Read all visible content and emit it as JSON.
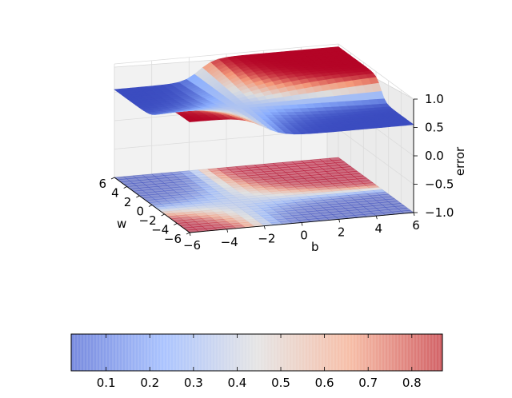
{
  "chart_data": {
    "type": "surface3d",
    "title": "",
    "xlabel": "b",
    "ylabel": "w",
    "zlabel": "error",
    "b_ticks": [
      "−6",
      "−4",
      "−2",
      "0",
      "2",
      "4",
      "6"
    ],
    "w_ticks": [
      "−6",
      "−4",
      "−2",
      "0",
      "2",
      "4",
      "6"
    ],
    "z_ticks": [
      "−1.0",
      "−0.5",
      "0.0",
      "0.5",
      "1.0"
    ],
    "xlim": [
      -6,
      6
    ],
    "ylim": [
      -6,
      6
    ],
    "zlim": [
      -1,
      1
    ],
    "contour_offset": -1,
    "colormap": "coolwarm",
    "colorbar": {
      "ticks": [
        "0.1",
        "0.2",
        "0.3",
        "0.4",
        "0.5",
        "0.6",
        "0.7",
        "0.8"
      ],
      "tick_values": [
        0.1,
        0.2,
        0.3,
        0.4,
        0.5,
        0.6,
        0.7,
        0.8
      ],
      "range": [
        0.02,
        0.87
      ]
    },
    "grid": true
  }
}
